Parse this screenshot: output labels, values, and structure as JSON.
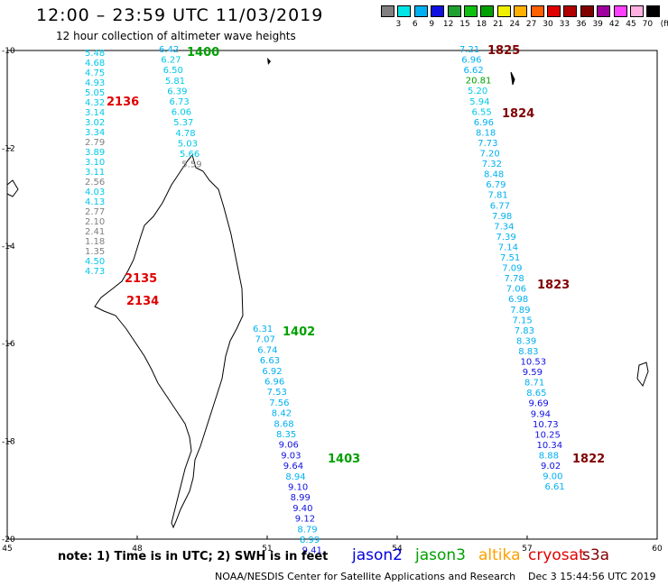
{
  "header": {
    "title": "12:00 – 23:59 UTC 11/03/2019",
    "subtitle": "12 hour collection of altimeter wave heights"
  },
  "colorbar": {
    "unit": "(ft)",
    "colors": [
      "#808080",
      "#00e5e5",
      "#00b0f0",
      "#1010e0",
      "#20a030",
      "#10c010",
      "#00a000",
      "#f0f000",
      "#ffb000",
      "#ff6000",
      "#e00000",
      "#b00000",
      "#800000",
      "#a000a0",
      "#ff40ff",
      "#ffb0e0",
      "#000000"
    ],
    "labels": [
      "3",
      "6",
      "9",
      "12",
      "15",
      "18",
      "21",
      "24",
      "27",
      "30",
      "33",
      "36",
      "39",
      "42",
      "45",
      "70"
    ]
  },
  "map": {
    "lon_ticks": [
      "45",
      "48",
      "51",
      "54",
      "57",
      "60"
    ],
    "lat_ticks": [
      "-10",
      "-12",
      "-14",
      "-16",
      "-18",
      "-20"
    ],
    "lon_range": [
      45,
      60
    ],
    "lat_range": [
      -20,
      -10
    ]
  },
  "tracks": [
    {
      "id": "t2136",
      "color_group": "left",
      "label": "2136",
      "label_color": "#e00000",
      "x": 94,
      "y_start": 62,
      "step": 11,
      "values": [
        "5.48",
        "4.68",
        "4.75",
        "4.93",
        "5.05",
        "4.32",
        "3.14",
        "3.02",
        "3.34",
        "2.79",
        "3.89",
        "3.10",
        "3.11",
        "2.56",
        "4.03",
        "4.13",
        "2.77",
        "2.10",
        "2.41",
        "1.18",
        "1.35",
        "4.50",
        "4.73"
      ],
      "colors": [
        "#00c8e8",
        "#00c8e8",
        "#00c8e8",
        "#00c8e8",
        "#00c8e8",
        "#00c8e8",
        "#00c8e8",
        "#00c8e8",
        "#00c8e8",
        "#808080",
        "#00c8e8",
        "#00c8e8",
        "#00c8e8",
        "#808080",
        "#00c8e8",
        "#00c8e8",
        "#808080",
        "#808080",
        "#808080",
        "#808080",
        "#808080",
        "#00c8e8",
        "#00c8e8"
      ]
    },
    {
      "id": "t1400",
      "label": "1400",
      "label_color": "#00a000",
      "x": 176,
      "y_start": 58,
      "step": 11.6,
      "dx": 2.3,
      "values": [
        "6.42",
        "6.27",
        "6.50",
        "5.81",
        "6.39",
        "6.73",
        "6.06",
        "5.37",
        "4.78",
        "5.03",
        "5.66",
        "5.59"
      ],
      "colors": [
        "#00b0f0",
        "#00c8e8",
        "#00c8e8",
        "#00c8e8",
        "#00c8e8",
        "#00c8e8",
        "#00c8e8",
        "#00c8e8",
        "#00c8e8",
        "#00c8e8",
        "#00c8e8",
        "#808080"
      ]
    },
    {
      "id": "t1402",
      "label": "1402",
      "label_color": "#00a000",
      "x": 280,
      "y_start": 368,
      "step": 11.7,
      "dx": 2.6,
      "values": [
        "6.31",
        "7.07",
        "6.74",
        "6.63",
        "6.92",
        "6.96",
        "7.53",
        "7.56",
        "8.42",
        "8.68",
        "8.35",
        "9.06",
        "9.03",
        "9.64",
        "8.94",
        "9.10",
        "8.99",
        "9.40",
        "9.12",
        "8.79",
        "8.99",
        "9.41"
      ],
      "colors": [
        "#00b0f0",
        "#00b0f0",
        "#00b0f0",
        "#00b0f0",
        "#00b0f0",
        "#00b0f0",
        "#00b0f0",
        "#00b0f0",
        "#00b0f0",
        "#00b0f0",
        "#00b0f0",
        "#1010e0",
        "#1010e0",
        "#1010e0",
        "#00b0f0",
        "#1010e0",
        "#1010e0",
        "#1010e0",
        "#1010e0",
        "#00b0f0",
        "#00b0f0",
        "#1010e0"
      ]
    },
    {
      "id": "t1825",
      "label": "1825",
      "label_color": "#800000",
      "x": 509,
      "y_start": 58,
      "step": 11.55,
      "dx": 2.25,
      "values": [
        "7.21",
        "6.96",
        "6.62",
        "20.81",
        "5.20",
        "5.94",
        "6.55",
        "6.96",
        "8.18",
        "7.73",
        "7.20",
        "7.32",
        "8.48",
        "6.79",
        "7.81",
        "6.77",
        "7.98",
        "7.34",
        "7.39",
        "7.14",
        "7.51",
        "7.09",
        "7.78",
        "7.06",
        "6.98",
        "7.89",
        "7.15",
        "7.83",
        "8.39",
        "8.83",
        "10.53",
        "9.59",
        "8.71",
        "8.65",
        "9.69",
        "9.94",
        "10.73",
        "10.25",
        "10.34",
        "8.88",
        "9.02",
        "9.00",
        "6.61"
      ],
      "colors": [
        "#00b0f0",
        "#00b0f0",
        "#00b0f0",
        "#00a000",
        "#00c8e8",
        "#00c8e8",
        "#00c8e8",
        "#00b0f0",
        "#00b0f0",
        "#00b0f0",
        "#00b0f0",
        "#00b0f0",
        "#00b0f0",
        "#00b0f0",
        "#00b0f0",
        "#00b0f0",
        "#00b0f0",
        "#00b0f0",
        "#00b0f0",
        "#00b0f0",
        "#00b0f0",
        "#00b0f0",
        "#00b0f0",
        "#00b0f0",
        "#00b0f0",
        "#00b0f0",
        "#00b0f0",
        "#00b0f0",
        "#00b0f0",
        "#00b0f0",
        "#1010e0",
        "#1010e0",
        "#00b0f0",
        "#00b0f0",
        "#1010e0",
        "#1010e0",
        "#1010e0",
        "#1010e0",
        "#1010e0",
        "#00b0f0",
        "#1010e0",
        "#00b0f0",
        "#00b0f0"
      ]
    }
  ],
  "track_labels": [
    {
      "text": "2136",
      "color": "#e00000"
    },
    {
      "text": "2135",
      "color": "#e00000"
    },
    {
      "text": "2134",
      "color": "#e00000"
    },
    {
      "text": "1400",
      "color": "#00a000"
    },
    {
      "text": "1402",
      "color": "#00a000"
    },
    {
      "text": "1403",
      "color": "#00a000"
    },
    {
      "text": "1825",
      "color": "#800000"
    },
    {
      "text": "1824",
      "color": "#800000"
    },
    {
      "text": "1823",
      "color": "#800000"
    },
    {
      "text": "1822",
      "color": "#800000"
    }
  ],
  "footer": {
    "note": "note:  1) Time is in UTC;  2) SWH is in feet",
    "credit": "NOAA/NESDIS Center for Satellite Applications and Research",
    "date": "Dec  3 15:44:56 UTC 2019",
    "satellites": [
      {
        "name": "jason2",
        "color": "#0000e0"
      },
      {
        "name": "jason3",
        "color": "#00a000"
      },
      {
        "name": "altika",
        "color": "#ffa000"
      },
      {
        "name": "cryosat",
        "color": "#e00000"
      },
      {
        "name": "s3a",
        "color": "#800000"
      }
    ]
  }
}
